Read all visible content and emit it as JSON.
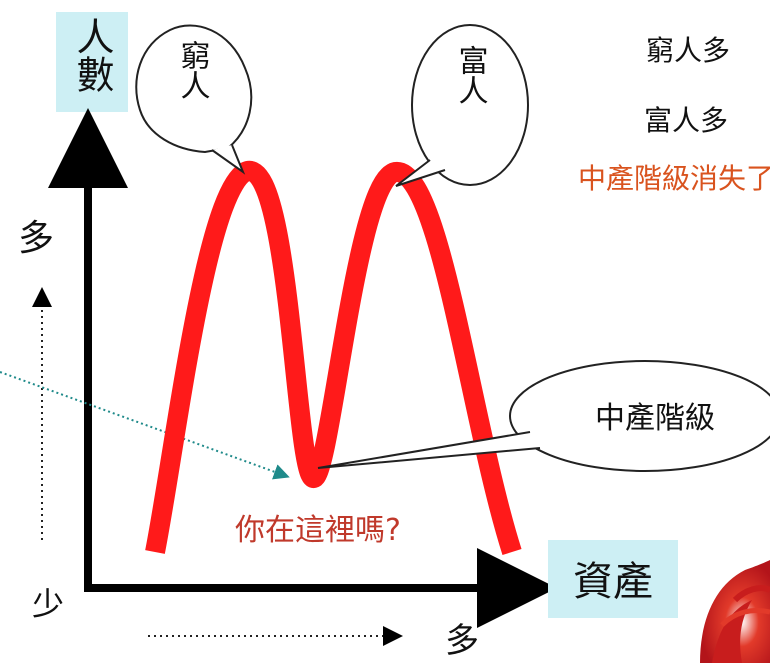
{
  "axis": {
    "y_label": "人數",
    "x_label": "資產",
    "y_more": "多",
    "origin_less": "少",
    "x_more": "多"
  },
  "bubbles": {
    "poor": "窮人",
    "rich": "富人",
    "middle": "中產階級"
  },
  "question": "你在這裡嗎?",
  "notes": {
    "line1": "窮人多",
    "line2": "富人多",
    "line3": "中產階級消失了"
  },
  "colors": {
    "curve": "#ff1a1a",
    "label_bg": "#cdeff4",
    "question": "#c0392b",
    "note_red": "#d9531e"
  }
}
